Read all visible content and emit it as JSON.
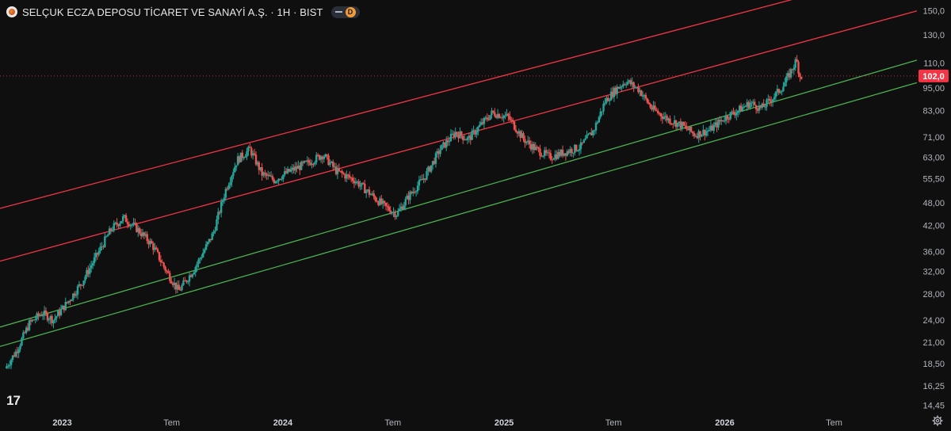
{
  "header": {
    "title": "SELÇUK ECZA DEPOSU TİCARET VE SANAYİ A.Ş. · 1H · BIST",
    "badge": "D"
  },
  "tv_logo": "17",
  "colors": {
    "background": "#0f0f0f",
    "up": "#26a69a",
    "down": "#ef5350",
    "resistance_line": "#f23645",
    "support_line": "#4caf50",
    "axis_text": "#b2b5be",
    "price_label_bg": "#f23645"
  },
  "chart_data": {
    "type": "candlestick",
    "title": "SELÇUK ECZA DEPOSU TİCARET VE SANAYİ A.Ş. · 1H · BIST",
    "y_scale": "log",
    "ylim": [
      13.9,
      160
    ],
    "y_ticks": [
      "150,0",
      "130,0",
      "110,0",
      "95,00",
      "83,00",
      "71,00",
      "63,00",
      "55,50",
      "48,00",
      "42,00",
      "36,00",
      "32,00",
      "28,00",
      "24,00",
      "21,00",
      "18,50",
      "16,25",
      "14,45"
    ],
    "y_tick_values": [
      150,
      130,
      110,
      95,
      83,
      71,
      63,
      55.5,
      48,
      42,
      36,
      32,
      28,
      24,
      21,
      18.5,
      16.25,
      14.45
    ],
    "x_ticks": [
      "2023",
      "Tem",
      "2024",
      "Tem",
      "2025",
      "Tem",
      "2026",
      "Tem"
    ],
    "x_tick_dates": [
      "2023-01-01",
      "2023-07-01",
      "2024-01-01",
      "2024-07-01",
      "2025-01-01",
      "2025-07-01",
      "2026-01-01",
      "2026-07-01"
    ],
    "x_range": [
      "2022-09-20",
      "2026-11-15"
    ],
    "last_price": "102,0",
    "last_price_value": 102,
    "grid": false,
    "price_path": [
      [
        "2022-10-01",
        18.0
      ],
      [
        "2022-10-20",
        20.0
      ],
      [
        "2022-11-10",
        23.5
      ],
      [
        "2022-12-01",
        25.0
      ],
      [
        "2022-12-20",
        24.0
      ],
      [
        "2023-01-15",
        27.0
      ],
      [
        "2023-02-05",
        30.0
      ],
      [
        "2023-03-05",
        36.0
      ],
      [
        "2023-03-25",
        41.0
      ],
      [
        "2023-04-15",
        44.0
      ],
      [
        "2023-05-05",
        41.5
      ],
      [
        "2023-06-01",
        37.5
      ],
      [
        "2023-06-25",
        32.0
      ],
      [
        "2023-07-15",
        28.5
      ],
      [
        "2023-08-10",
        32.5
      ],
      [
        "2023-09-10",
        40.0
      ],
      [
        "2023-10-01",
        52.0
      ],
      [
        "2023-10-20",
        62.0
      ],
      [
        "2023-11-10",
        66.0
      ],
      [
        "2023-11-30",
        57.0
      ],
      [
        "2023-12-20",
        55.0
      ],
      [
        "2024-01-15",
        58.0
      ],
      [
        "2024-02-15",
        61.0
      ],
      [
        "2024-03-10",
        64.0
      ],
      [
        "2024-04-01",
        58.0
      ],
      [
        "2024-05-01",
        55.0
      ],
      [
        "2024-05-25",
        51.0
      ],
      [
        "2024-06-20",
        47.0
      ],
      [
        "2024-07-10",
        45.0
      ],
      [
        "2024-07-30",
        50.0
      ],
      [
        "2024-08-25",
        56.0
      ],
      [
        "2024-09-20",
        66.0
      ],
      [
        "2024-10-15",
        73.0
      ],
      [
        "2024-11-05",
        70.0
      ],
      [
        "2024-11-25",
        76.0
      ],
      [
        "2024-12-15",
        82.0
      ],
      [
        "2025-01-10",
        80.0
      ],
      [
        "2025-02-05",
        70.0
      ],
      [
        "2025-02-25",
        66.0
      ],
      [
        "2025-03-20",
        63.0
      ],
      [
        "2025-04-15",
        65.0
      ],
      [
        "2025-05-10",
        67.0
      ],
      [
        "2025-06-01",
        74.0
      ],
      [
        "2025-06-20",
        88.0
      ],
      [
        "2025-07-10",
        95.0
      ],
      [
        "2025-07-25",
        99.0
      ],
      [
        "2025-08-15",
        94.0
      ],
      [
        "2025-09-05",
        84.0
      ],
      [
        "2025-10-01",
        79.0
      ],
      [
        "2025-10-25",
        76.0
      ],
      [
        "2025-11-15",
        72.0
      ],
      [
        "2025-12-10",
        74.0
      ],
      [
        "2026-01-05",
        80.0
      ],
      [
        "2026-01-25",
        83.0
      ],
      [
        "2026-02-15",
        87.0
      ],
      [
        "2026-03-05",
        84.0
      ],
      [
        "2026-03-25",
        90.0
      ],
      [
        "2026-04-10",
        96.0
      ],
      [
        "2026-04-22",
        104.0
      ],
      [
        "2026-05-02",
        112.0
      ],
      [
        "2026-05-08",
        102.0
      ]
    ],
    "channels": [
      {
        "color": "#f23645",
        "points": [
          [
            "2022-09-20",
            46.5
          ],
          [
            "2026-11-15",
            195.0
          ]
        ]
      },
      {
        "color": "#f23645",
        "points": [
          [
            "2022-09-20",
            34.0
          ],
          [
            "2026-11-15",
            150.0
          ]
        ]
      },
      {
        "color": "#4caf50",
        "points": [
          [
            "2022-09-20",
            23.0
          ],
          [
            "2026-11-15",
            112.0
          ]
        ]
      },
      {
        "color": "#4caf50",
        "points": [
          [
            "2022-09-20",
            20.5
          ],
          [
            "2026-11-15",
            98.0
          ]
        ]
      }
    ],
    "current_price_line": {
      "value": 102,
      "style": "dotted",
      "color": "#f23645"
    }
  }
}
